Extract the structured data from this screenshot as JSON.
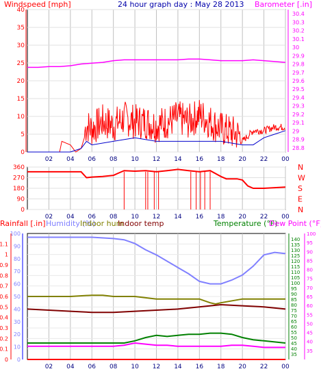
{
  "header": {
    "title": "24 hour graph day : May 28 2013",
    "left_label": "Windspeed [mph]",
    "right_label": "Barometer [.in]"
  },
  "lower_labels": {
    "rainfall": "Rainfall [.in]",
    "humidity": "Humidity (%)",
    "indoor_hum": "Indoor hum",
    "indoor_temp": "Indoor temp",
    "temperature": "Temperature (°F)",
    "dew_point": "Dew Point (°F)"
  },
  "colors": {
    "wind": "#ff0000",
    "gust_avg": "#0000cc",
    "barometer": "#ff00ff",
    "direction": "#ff0000",
    "humidity": "#8080ff",
    "indoor_hum": "#808000",
    "indoor_temp": "#800000",
    "temperature": "#008000",
    "dew_point": "#ff00ff",
    "rain": "#ff0000",
    "axis_left": "#ff0000",
    "axis_right": "#ff00ff",
    "title": "#0000aa"
  },
  "chart_data": [
    {
      "type": "line",
      "title": "24 hour graph day : May 28 2013",
      "x_ticks": [
        "02",
        "04",
        "06",
        "08",
        "10",
        "12",
        "14",
        "16",
        "18",
        "20",
        "22",
        "00"
      ],
      "xlim": [
        0,
        24
      ],
      "left_axis": {
        "label": "Windspeed [mph]",
        "ticks": [
          0,
          5,
          10,
          15,
          20,
          25,
          30,
          35,
          40
        ],
        "ylim": [
          0,
          40
        ]
      },
      "right_axis": {
        "label": "Barometer [.in]",
        "ticks": [
          "28.8",
          "28.9",
          "29",
          "29.1",
          "29.2",
          "29.3",
          "29.4",
          "29.5",
          "29.6",
          "29.7",
          "29.8",
          "29.9",
          "30",
          "30.1",
          "30.2",
          "30.3",
          "30.4"
        ],
        "ylim": [
          28.75,
          30.45
        ]
      },
      "series": [
        {
          "axis": "left",
          "x": [
            0,
            2,
            3,
            3.2,
            4,
            4.5,
            5,
            5.5,
            6,
            7,
            8,
            9,
            10,
            11,
            12,
            13,
            14,
            15,
            16,
            17,
            18,
            19,
            20,
            21,
            22,
            23,
            24
          ],
          "values": [
            0,
            0,
            0,
            3,
            2,
            0,
            1,
            6,
            5,
            7,
            6,
            8,
            7,
            7,
            6,
            7,
            8,
            7,
            9,
            7,
            5,
            4,
            3,
            6,
            6,
            7,
            7
          ]
        },
        {
          "axis": "left",
          "x": [
            0,
            3,
            4,
            5,
            5.5,
            6,
            8,
            10,
            12,
            14,
            16,
            18,
            20,
            21,
            22,
            23,
            24
          ],
          "values": [
            0,
            0,
            0,
            1,
            3,
            2,
            3,
            4,
            3,
            3,
            3,
            3,
            2,
            2,
            4,
            5,
            6
          ]
        },
        {
          "axis": "right",
          "x": [
            0,
            1,
            2,
            3,
            4,
            5,
            6,
            7,
            8,
            9,
            10,
            11,
            12,
            13,
            14,
            15,
            16,
            17,
            18,
            19,
            20,
            21,
            22,
            23,
            24
          ],
          "values": [
            29.76,
            29.76,
            29.77,
            29.77,
            29.78,
            29.8,
            29.81,
            29.82,
            29.84,
            29.85,
            29.85,
            29.85,
            29.85,
            29.85,
            29.85,
            29.86,
            29.86,
            29.85,
            29.84,
            29.84,
            29.84,
            29.85,
            29.84,
            29.83,
            29.82
          ]
        }
      ]
    },
    {
      "type": "line",
      "title": "",
      "x_ticks": [
        "02",
        "04",
        "06",
        "08",
        "10",
        "12",
        "14",
        "16",
        "18",
        "20",
        "22",
        "00"
      ],
      "xlim": [
        0,
        24
      ],
      "left_axis": {
        "label": "",
        "ticks": [
          0,
          90,
          180,
          270,
          360
        ],
        "ylim": [
          0,
          360
        ]
      },
      "right_axis": {
        "label": "",
        "ticks": [
          "N",
          "W",
          "S",
          "E",
          "N"
        ]
      },
      "series": [
        {
          "x": [
            0,
            4.5,
            5,
            5.5,
            6,
            7,
            8,
            8.5,
            9,
            10,
            11,
            12,
            13,
            14,
            15,
            16,
            17,
            18,
            18.5,
            19,
            19.5,
            20,
            20.5,
            21,
            22,
            23,
            24
          ],
          "values": [
            320,
            320,
            320,
            270,
            275,
            280,
            290,
            310,
            330,
            325,
            330,
            320,
            330,
            340,
            330,
            320,
            330,
            280,
            260,
            260,
            260,
            250,
            200,
            180,
            180,
            185,
            190
          ]
        }
      ]
    },
    {
      "type": "line",
      "title": "",
      "x_ticks": [
        "02",
        "04",
        "06",
        "08",
        "10",
        "12",
        "14",
        "16",
        "18",
        "20",
        "22",
        "00"
      ],
      "xlim": [
        0,
        24
      ],
      "left_axis": {
        "label": "Rainfall [.in]",
        "ticks": [
          "0",
          "0.1",
          "0.2",
          "0.3",
          "0.4",
          "0.5",
          "0.6",
          "0.7",
          "0.8",
          "0.9",
          "1",
          "1.1"
        ],
        "ylim": [
          0,
          1.2
        ]
      },
      "humidity_axis": {
        "label": "Humidity (%)",
        "ticks": [
          0,
          10,
          20,
          30,
          40,
          50,
          60,
          70,
          80,
          90,
          100
        ],
        "ylim": [
          0,
          100
        ]
      },
      "temp_axis": {
        "label": "Temperature (°F)",
        "ticks": [
          35,
          40,
          45,
          50,
          55,
          60,
          65,
          70,
          75,
          80,
          85,
          90,
          95,
          100,
          105,
          110,
          115,
          120,
          125,
          130,
          135,
          140
        ],
        "ylim": [
          30,
          145
        ]
      },
      "dew_axis": {
        "label": "Dew Point (°F)",
        "ticks": [
          35,
          40,
          45,
          50,
          55,
          60,
          65,
          70,
          75,
          80,
          85,
          90,
          95,
          100
        ],
        "ylim": [
          30,
          100
        ]
      },
      "series": [
        {
          "name": "Humidity",
          "x": [
            0,
            2,
            4,
            6,
            8,
            9,
            10,
            11,
            12,
            13,
            14,
            15,
            16,
            17,
            18,
            19,
            20,
            21,
            22,
            23,
            24
          ],
          "values": [
            97,
            97,
            97,
            97,
            96,
            95,
            92,
            87,
            83,
            78,
            73,
            68,
            62,
            60,
            60,
            63,
            67,
            74,
            83,
            85,
            84
          ]
        },
        {
          "name": "Indoor hum",
          "x": [
            0,
            2,
            4,
            6,
            7,
            8,
            10,
            12,
            14,
            16,
            17,
            17.5,
            18,
            20,
            22,
            24
          ],
          "values": [
            50,
            50,
            50,
            51,
            51,
            50,
            50,
            48,
            48,
            48,
            45,
            44,
            45,
            48,
            48,
            48
          ]
        },
        {
          "name": "Indoor temp",
          "x": [
            0,
            2,
            4,
            6,
            8,
            10,
            12,
            14,
            16,
            18,
            20,
            22,
            24
          ],
          "values": [
            76,
            75,
            74,
            73,
            73,
            74,
            75,
            76,
            78,
            80,
            79,
            78,
            76
          ]
        },
        {
          "name": "Temperature",
          "x": [
            0,
            2,
            4,
            6,
            7,
            8,
            9,
            10,
            11,
            12,
            13,
            14,
            15,
            16,
            17,
            18,
            19,
            20,
            21,
            22,
            23,
            24
          ],
          "values": [
            45,
            45,
            45,
            45,
            45,
            45,
            45,
            47,
            50,
            52,
            51,
            52,
            53,
            53,
            54,
            54,
            53,
            50,
            48,
            47,
            46,
            45
          ]
        },
        {
          "name": "Dew Point",
          "x": [
            0,
            2,
            4,
            6,
            8,
            9,
            10,
            11,
            12,
            13,
            14,
            15,
            16,
            17,
            18,
            19,
            20,
            21,
            22,
            23,
            24
          ],
          "values": [
            42,
            42,
            42,
            42,
            42,
            43,
            45,
            44,
            43,
            43,
            42,
            42,
            42,
            42,
            42,
            43,
            43,
            42,
            41,
            41,
            41
          ]
        },
        {
          "name": "Rainfall",
          "x": [
            0,
            24
          ],
          "values": [
            0,
            0
          ]
        }
      ]
    }
  ]
}
